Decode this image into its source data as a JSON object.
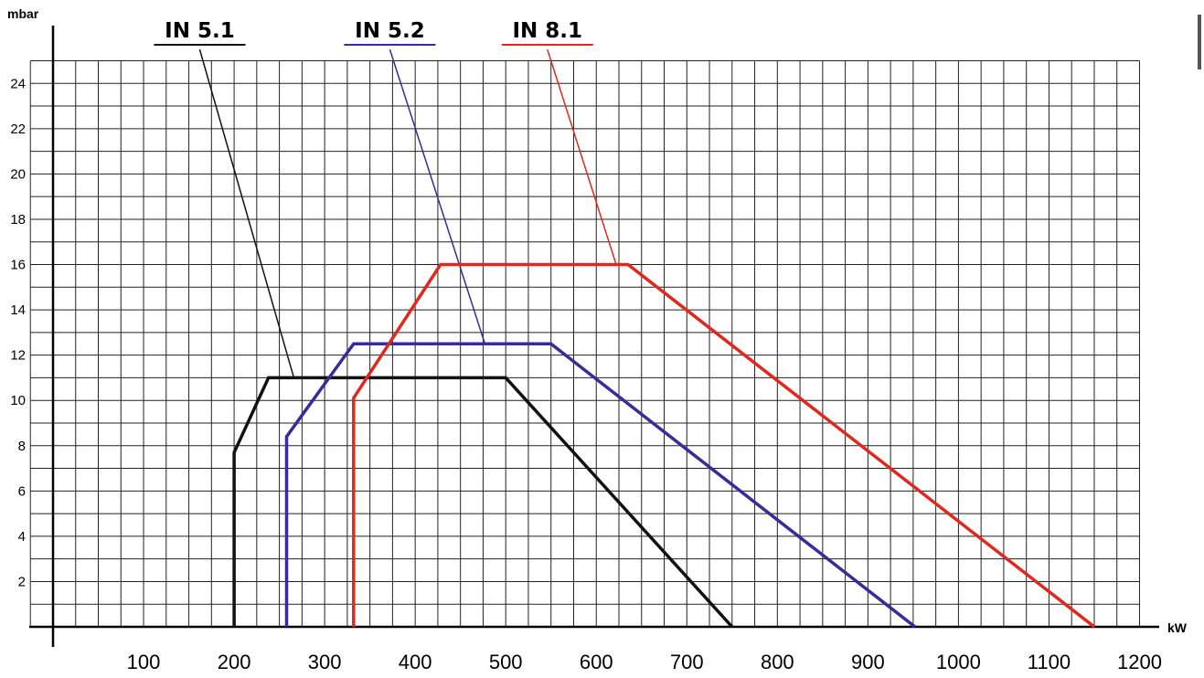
{
  "chart_data": {
    "type": "line",
    "xlabel": "kW",
    "ylabel": "mbar",
    "xlim": [
      -50,
      1225
    ],
    "ylim": [
      0,
      25
    ],
    "x_ticks": [
      100,
      200,
      300,
      400,
      500,
      600,
      700,
      800,
      900,
      1000,
      1100,
      1200
    ],
    "x_tick_labels": [
      "100",
      "200",
      "300",
      "400",
      "500",
      "600",
      "700",
      "800",
      "900",
      "1000",
      "1100",
      "1200"
    ],
    "y_ticks": [
      2,
      4,
      6,
      8,
      10,
      12,
      14,
      16,
      18,
      20,
      22,
      24
    ],
    "y_tick_labels": [
      "2",
      "4",
      "6",
      "8",
      "10",
      "12",
      "14",
      "16",
      "18",
      "20",
      "22",
      "24"
    ],
    "grid": true,
    "grid_x_step": 25,
    "grid_y_step": 1,
    "legend_placement": "top",
    "series": [
      {
        "name": "IN 5.1",
        "color": "#111111",
        "points": [
          [
            200,
            0
          ],
          [
            200,
            7.7
          ],
          [
            238,
            11
          ],
          [
            500,
            11
          ],
          [
            750,
            0
          ]
        ],
        "leader_from": [
          162,
          25.5
        ],
        "leader_to": [
          266,
          11
        ]
      },
      {
        "name": "IN 5.2",
        "color": "#3a2b9a",
        "points": [
          [
            258,
            0
          ],
          [
            258,
            8.4
          ],
          [
            332,
            12.5
          ],
          [
            550,
            12.5
          ],
          [
            952,
            0
          ]
        ],
        "leader_from": [
          372,
          25.5
        ],
        "leader_to": [
          477,
          12.5
        ]
      },
      {
        "name": "IN 8.1",
        "color": "#e0281f",
        "points": [
          [
            332,
            0
          ],
          [
            332,
            10.1
          ],
          [
            428,
            16
          ],
          [
            635,
            16
          ],
          [
            1150,
            0
          ]
        ],
        "leader_from": [
          546,
          25.5
        ],
        "leader_to": [
          622,
          16
        ]
      }
    ]
  }
}
